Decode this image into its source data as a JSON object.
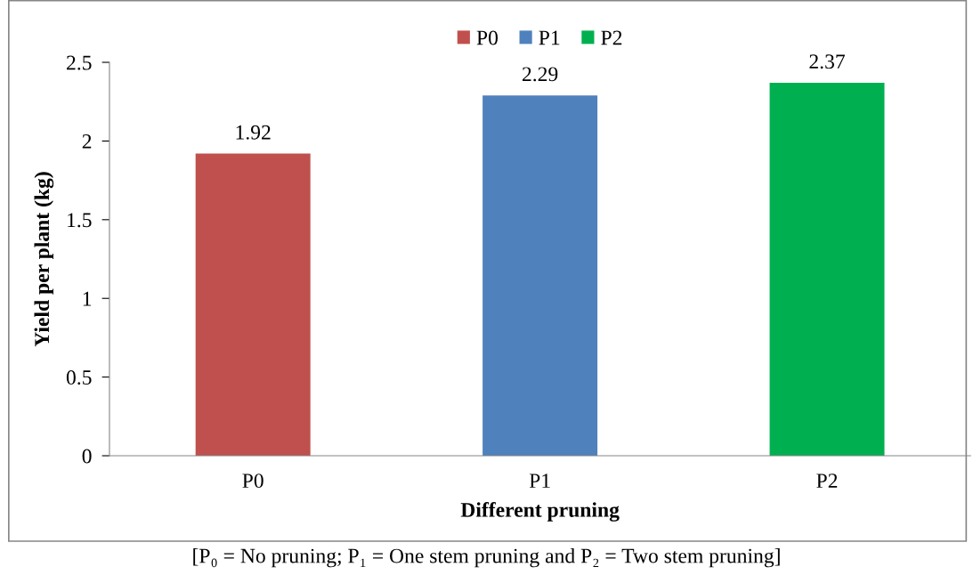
{
  "chart_data": {
    "type": "bar",
    "categories": [
      "P0",
      "P1",
      "P2"
    ],
    "series": [
      {
        "name": "P0",
        "color": "#c0504d",
        "values": [
          1.92,
          null,
          null
        ]
      },
      {
        "name": "P1",
        "color": "#4f81bd",
        "values": [
          null,
          2.29,
          null
        ]
      },
      {
        "name": "P2",
        "color": "#00b050",
        "values": [
          null,
          null,
          2.37
        ]
      }
    ],
    "data_labels": true,
    "xlabel": "Different pruning",
    "ylabel": "Yield per plant (kg)",
    "ylim": [
      0,
      2.5
    ],
    "yticks": [
      0,
      0.5,
      1,
      1.5,
      2,
      2.5
    ],
    "legend": "top",
    "grid": false,
    "annotations": [
      "[P₀ = No pruning; P₁ = One stem pruning and P₂ = Two stem pruning]"
    ]
  }
}
